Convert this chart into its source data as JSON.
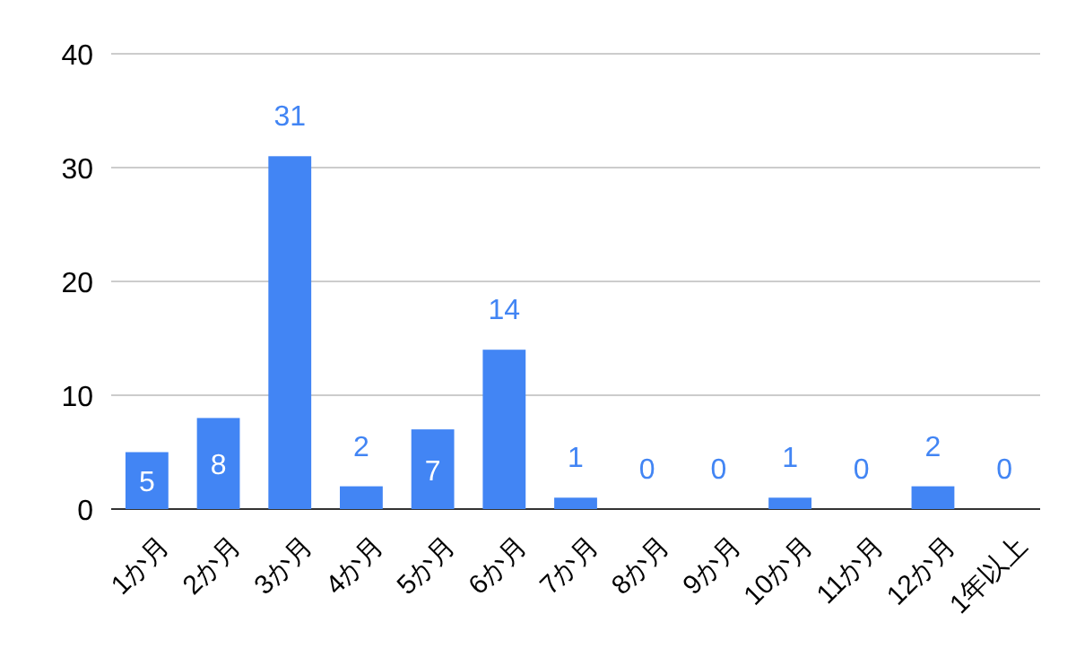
{
  "chart_data": {
    "type": "bar",
    "categories": [
      "1か月",
      "2か月",
      "3か月",
      "4か月",
      "5か月",
      "6か月",
      "7か月",
      "8か月",
      "9か月",
      "10か月",
      "11か月",
      "12か月",
      "1年以上"
    ],
    "values": [
      5,
      8,
      31,
      2,
      7,
      14,
      1,
      0,
      0,
      1,
      0,
      2,
      0
    ],
    "color": "#4285f4",
    "ylim": [
      0,
      40
    ],
    "yticks": [
      0,
      10,
      20,
      30,
      40
    ],
    "grid": "y",
    "data_labels": true
  }
}
